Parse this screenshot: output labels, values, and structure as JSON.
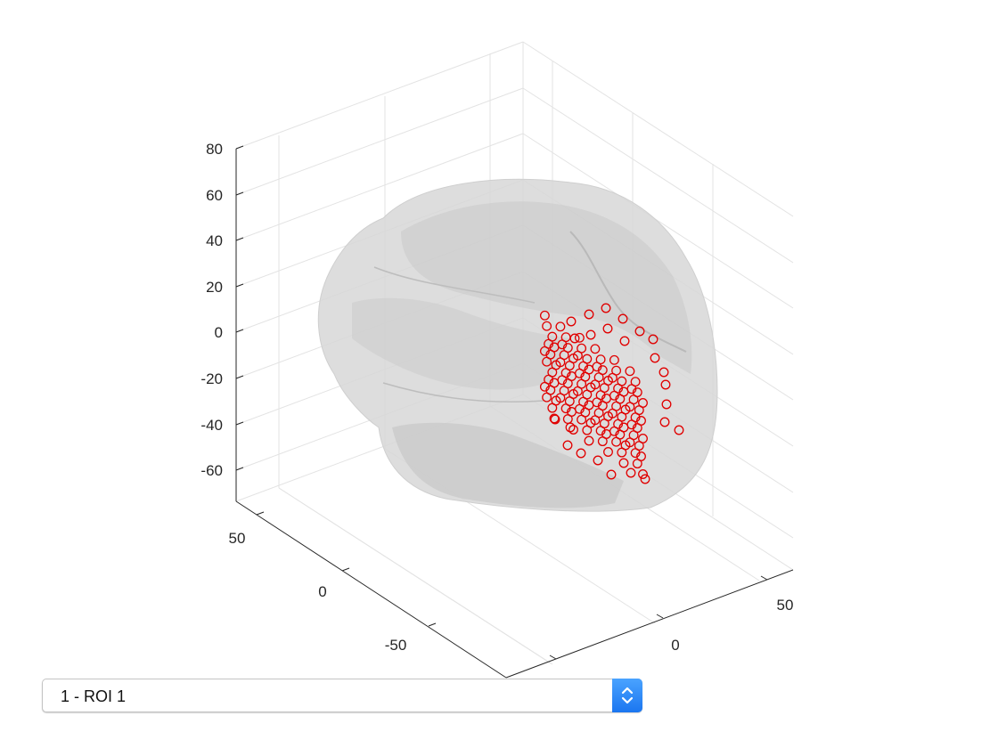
{
  "plot": {
    "z_ticks": [
      "80",
      "60",
      "40",
      "20",
      "0",
      "-20",
      "-40",
      "-60"
    ],
    "y_ticks": [
      "50",
      "0",
      "-50"
    ],
    "x_ticks": [
      "50",
      "0"
    ],
    "brain_color": "#c8c8c8",
    "marker_color": "#e00000",
    "marker_shape": "circle",
    "marker_count": 118
  },
  "roi_selector": {
    "selected": "1 - ROI 1",
    "stepper_icon": "up-down-chevron-icon",
    "accent": "#1b76f0"
  }
}
